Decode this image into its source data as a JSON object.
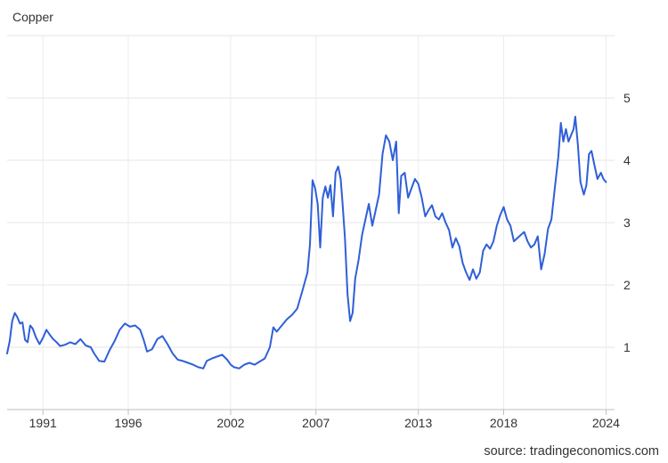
{
  "chart_data": {
    "type": "line",
    "title": "Copper",
    "source": "source: tradingeconomics.com",
    "ylim": [
      0,
      6
    ],
    "xlim": [
      1988.9,
      2024.5
    ],
    "x_ticks": [
      1991,
      1996,
      2002,
      2007,
      2013,
      2018,
      2024
    ],
    "y_ticks": [
      1,
      2,
      3,
      4,
      5
    ],
    "grid": true,
    "color": "#2f5fd8",
    "series": [
      {
        "points": [
          [
            1988.9,
            0.9
          ],
          [
            1989.05,
            1.1
          ],
          [
            1989.2,
            1.42
          ],
          [
            1989.35,
            1.55
          ],
          [
            1989.5,
            1.48
          ],
          [
            1989.65,
            1.38
          ],
          [
            1989.8,
            1.4
          ],
          [
            1989.95,
            1.12
          ],
          [
            1990.1,
            1.08
          ],
          [
            1990.25,
            1.35
          ],
          [
            1990.4,
            1.3
          ],
          [
            1990.6,
            1.15
          ],
          [
            1990.8,
            1.05
          ],
          [
            1991.0,
            1.15
          ],
          [
            1991.2,
            1.28
          ],
          [
            1991.4,
            1.2
          ],
          [
            1991.6,
            1.13
          ],
          [
            1991.8,
            1.08
          ],
          [
            1992.0,
            1.02
          ],
          [
            1992.3,
            1.04
          ],
          [
            1992.6,
            1.08
          ],
          [
            1992.9,
            1.05
          ],
          [
            1993.2,
            1.13
          ],
          [
            1993.5,
            1.03
          ],
          [
            1993.8,
            1.0
          ],
          [
            1994.0,
            0.9
          ],
          [
            1994.3,
            0.78
          ],
          [
            1994.6,
            0.77
          ],
          [
            1994.9,
            0.95
          ],
          [
            1995.2,
            1.1
          ],
          [
            1995.5,
            1.28
          ],
          [
            1995.8,
            1.38
          ],
          [
            1996.1,
            1.33
          ],
          [
            1996.4,
            1.35
          ],
          [
            1996.7,
            1.28
          ],
          [
            1996.9,
            1.12
          ],
          [
            1997.1,
            0.93
          ],
          [
            1997.4,
            0.97
          ],
          [
            1997.7,
            1.13
          ],
          [
            1998.0,
            1.18
          ],
          [
            1998.3,
            1.05
          ],
          [
            1998.6,
            0.9
          ],
          [
            1998.9,
            0.8
          ],
          [
            1999.2,
            0.78
          ],
          [
            1999.5,
            0.75
          ],
          [
            1999.8,
            0.72
          ],
          [
            2000.1,
            0.68
          ],
          [
            2000.4,
            0.66
          ],
          [
            2000.6,
            0.78
          ],
          [
            2000.9,
            0.82
          ],
          [
            2001.2,
            0.85
          ],
          [
            2001.5,
            0.88
          ],
          [
            2001.8,
            0.8
          ],
          [
            2002.0,
            0.72
          ],
          [
            2002.2,
            0.68
          ],
          [
            2002.5,
            0.66
          ],
          [
            2002.8,
            0.72
          ],
          [
            2003.1,
            0.75
          ],
          [
            2003.4,
            0.72
          ],
          [
            2003.7,
            0.77
          ],
          [
            2004.0,
            0.82
          ],
          [
            2004.3,
            1.0
          ],
          [
            2004.5,
            1.32
          ],
          [
            2004.7,
            1.25
          ],
          [
            2005.0,
            1.35
          ],
          [
            2005.3,
            1.45
          ],
          [
            2005.6,
            1.52
          ],
          [
            2005.9,
            1.62
          ],
          [
            2006.2,
            1.9
          ],
          [
            2006.5,
            2.2
          ],
          [
            2006.65,
            2.65
          ],
          [
            2006.8,
            3.68
          ],
          [
            2006.95,
            3.55
          ],
          [
            2007.1,
            3.3
          ],
          [
            2007.25,
            2.6
          ],
          [
            2007.4,
            3.4
          ],
          [
            2007.55,
            3.58
          ],
          [
            2007.7,
            3.4
          ],
          [
            2007.85,
            3.6
          ],
          [
            2008.0,
            3.1
          ],
          [
            2008.15,
            3.8
          ],
          [
            2008.3,
            3.9
          ],
          [
            2008.45,
            3.7
          ],
          [
            2008.55,
            3.35
          ],
          [
            2008.7,
            2.75
          ],
          [
            2008.85,
            1.85
          ],
          [
            2009.0,
            1.42
          ],
          [
            2009.15,
            1.55
          ],
          [
            2009.3,
            2.1
          ],
          [
            2009.5,
            2.4
          ],
          [
            2009.7,
            2.8
          ],
          [
            2009.9,
            3.05
          ],
          [
            2010.1,
            3.3
          ],
          [
            2010.3,
            2.95
          ],
          [
            2010.5,
            3.2
          ],
          [
            2010.7,
            3.45
          ],
          [
            2010.9,
            4.1
          ],
          [
            2011.1,
            4.4
          ],
          [
            2011.3,
            4.3
          ],
          [
            2011.5,
            4.0
          ],
          [
            2011.7,
            4.3
          ],
          [
            2011.85,
            3.15
          ],
          [
            2012.0,
            3.75
          ],
          [
            2012.2,
            3.8
          ],
          [
            2012.4,
            3.4
          ],
          [
            2012.6,
            3.55
          ],
          [
            2012.8,
            3.7
          ],
          [
            2013.0,
            3.62
          ],
          [
            2013.2,
            3.4
          ],
          [
            2013.4,
            3.1
          ],
          [
            2013.6,
            3.2
          ],
          [
            2013.8,
            3.28
          ],
          [
            2014.0,
            3.1
          ],
          [
            2014.2,
            3.05
          ],
          [
            2014.4,
            3.15
          ],
          [
            2014.6,
            3.0
          ],
          [
            2014.8,
            2.88
          ],
          [
            2015.0,
            2.6
          ],
          [
            2015.2,
            2.75
          ],
          [
            2015.4,
            2.62
          ],
          [
            2015.6,
            2.35
          ],
          [
            2015.8,
            2.2
          ],
          [
            2016.0,
            2.08
          ],
          [
            2016.2,
            2.25
          ],
          [
            2016.4,
            2.1
          ],
          [
            2016.6,
            2.2
          ],
          [
            2016.8,
            2.55
          ],
          [
            2017.0,
            2.65
          ],
          [
            2017.2,
            2.58
          ],
          [
            2017.4,
            2.7
          ],
          [
            2017.6,
            2.95
          ],
          [
            2017.8,
            3.12
          ],
          [
            2018.0,
            3.25
          ],
          [
            2018.2,
            3.05
          ],
          [
            2018.4,
            2.95
          ],
          [
            2018.6,
            2.7
          ],
          [
            2018.8,
            2.75
          ],
          [
            2019.0,
            2.8
          ],
          [
            2019.2,
            2.85
          ],
          [
            2019.4,
            2.7
          ],
          [
            2019.6,
            2.6
          ],
          [
            2019.8,
            2.65
          ],
          [
            2020.0,
            2.78
          ],
          [
            2020.2,
            2.25
          ],
          [
            2020.4,
            2.5
          ],
          [
            2020.6,
            2.9
          ],
          [
            2020.8,
            3.05
          ],
          [
            2021.0,
            3.55
          ],
          [
            2021.2,
            4.05
          ],
          [
            2021.35,
            4.6
          ],
          [
            2021.5,
            4.3
          ],
          [
            2021.65,
            4.5
          ],
          [
            2021.8,
            4.3
          ],
          [
            2021.95,
            4.4
          ],
          [
            2022.1,
            4.5
          ],
          [
            2022.2,
            4.7
          ],
          [
            2022.35,
            4.25
          ],
          [
            2022.5,
            3.65
          ],
          [
            2022.7,
            3.45
          ],
          [
            2022.85,
            3.6
          ],
          [
            2023.0,
            4.1
          ],
          [
            2023.15,
            4.15
          ],
          [
            2023.3,
            3.95
          ],
          [
            2023.5,
            3.7
          ],
          [
            2023.7,
            3.8
          ],
          [
            2023.85,
            3.7
          ],
          [
            2024.0,
            3.65
          ]
        ]
      }
    ]
  }
}
